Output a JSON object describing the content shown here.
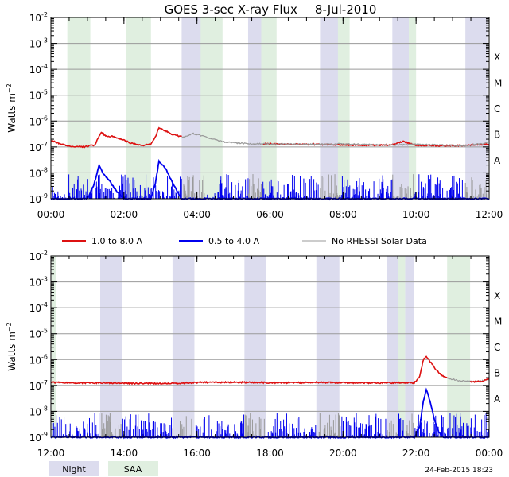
{
  "title": {
    "main": "GOES 3-sec X-ray Flux",
    "date": "8-Jul-2010"
  },
  "colors": {
    "long_channel": "#dd1111",
    "short_channel": "#0000ee",
    "no_rhessi": "#999999",
    "night": "#dcdcee",
    "saa": "#e0efe0",
    "grid": "#9a9a9a"
  },
  "ylabel": {
    "base": "Watts m",
    "exp": "−2"
  },
  "y_axis": {
    "scale": "log",
    "range": [
      1e-09,
      0.01
    ],
    "ticks": [
      {
        "value": -2,
        "base": "10",
        "exp": "-2"
      },
      {
        "value": -3,
        "base": "10",
        "exp": "-3"
      },
      {
        "value": -4,
        "base": "10",
        "exp": "-4"
      },
      {
        "value": -5,
        "base": "10",
        "exp": "-5"
      },
      {
        "value": -6,
        "base": "10",
        "exp": "-6"
      },
      {
        "value": -7,
        "base": "10",
        "exp": "-7"
      },
      {
        "value": -8,
        "base": "10",
        "exp": "-8"
      },
      {
        "value": -9,
        "base": "10",
        "exp": "-9"
      }
    ]
  },
  "flare_classes": [
    {
      "label": "X",
      "value": -3.5
    },
    {
      "label": "M",
      "value": -4.5
    },
    {
      "label": "C",
      "value": -5.5
    },
    {
      "label": "B",
      "value": -6.5
    },
    {
      "label": "A",
      "value": -7.5
    }
  ],
  "legend": {
    "long": "1.0 to 8.0 A",
    "short": "0.5 to 4.0 A",
    "none": "No RHESSI Solar Data"
  },
  "footer": {
    "night": "Night",
    "saa": "SAA",
    "created": "24-Feb-2015 18:23"
  },
  "chart_data": [
    {
      "type": "line",
      "x_range": [
        0,
        12
      ],
      "x_unit": "hours UT",
      "x_ticks": [
        "00:00",
        "02:00",
        "04:00",
        "06:00",
        "08:00",
        "10:00",
        "12:00"
      ],
      "y_unit": "log10 Watts m^-2",
      "night_intervals": [
        [
          3.58,
          4.2
        ],
        [
          5.4,
          5.8
        ],
        [
          7.37,
          7.9
        ],
        [
          9.35,
          9.95
        ],
        [
          11.35,
          11.95
        ]
      ],
      "saa_intervals": [
        [
          0.45,
          1.08
        ],
        [
          2.06,
          2.74
        ],
        [
          4.1,
          4.7
        ],
        [
          5.76,
          6.18
        ],
        [
          7.86,
          8.18
        ],
        [
          9.8,
          10.0
        ]
      ],
      "series": [
        {
          "name": "1.0 to 8.0 A",
          "color": "#dd1111",
          "points": [
            [
              0,
              -6.75
            ],
            [
              0.25,
              -6.88
            ],
            [
              0.5,
              -6.98
            ],
            [
              0.9,
              -7.0
            ],
            [
              1.2,
              -6.92
            ],
            [
              1.38,
              -6.42
            ],
            [
              1.5,
              -6.58
            ],
            [
              1.72,
              -6.6
            ],
            [
              1.9,
              -6.68
            ],
            [
              2.2,
              -6.85
            ],
            [
              2.5,
              -6.95
            ],
            [
              2.74,
              -6.9
            ],
            [
              2.86,
              -6.62
            ],
            [
              2.96,
              -6.25
            ],
            [
              3.06,
              -6.32
            ],
            [
              3.3,
              -6.5
            ],
            [
              3.58,
              -6.6
            ]
          ],
          "gaps": [
            [
              3.58,
              4.2
            ]
          ]
        },
        {
          "name": "1.0 to 8.0 A",
          "color": "#dd1111",
          "points": [
            [
              5.8,
              -6.88
            ],
            [
              6.5,
              -6.9
            ],
            [
              7.3,
              -6.9
            ],
            [
              7.9,
              -6.92
            ],
            [
              8.5,
              -6.93
            ],
            [
              9.3,
              -6.93
            ],
            [
              9.45,
              -6.88
            ],
            [
              9.65,
              -6.78
            ],
            [
              9.8,
              -6.85
            ],
            [
              10.0,
              -6.93
            ],
            [
              10.5,
              -6.95
            ],
            [
              11.3,
              -6.95
            ],
            [
              11.35,
              -6.93
            ],
            [
              12,
              -6.9
            ]
          ],
          "gaps": [
            [
              9.35,
              9.95
            ],
            [
              11.35,
              12
            ]
          ]
        },
        {
          "name": "No RHESSI Solar Data",
          "color": "#999999",
          "points": [
            [
              3.58,
              -6.65
            ],
            [
              3.9,
              -6.48
            ],
            [
              4.2,
              -6.6
            ],
            [
              4.7,
              -6.8
            ],
            [
              5.4,
              -6.88
            ],
            [
              5.8,
              -6.88
            ],
            [
              7.37,
              -6.9
            ],
            [
              7.9,
              -6.88
            ],
            [
              9.35,
              -6.93
            ],
            [
              9.95,
              -6.9
            ],
            [
              11.35,
              -6.95
            ],
            [
              11.95,
              -6.85
            ]
          ]
        },
        {
          "name": "0.5 to 4.0 A",
          "color": "#0000ee",
          "points": [
            [
              0,
              -9.0
            ],
            [
              1.0,
              -9.0
            ],
            [
              1.18,
              -8.45
            ],
            [
              1.32,
              -7.7
            ],
            [
              1.44,
              -8.05
            ],
            [
              1.6,
              -8.3
            ],
            [
              1.72,
              -8.55
            ],
            [
              1.85,
              -8.8
            ],
            [
              2.0,
              -9.0
            ],
            [
              2.74,
              -9.0
            ],
            [
              2.86,
              -8.4
            ],
            [
              2.96,
              -7.55
            ],
            [
              3.06,
              -7.7
            ],
            [
              3.15,
              -7.85
            ],
            [
              3.3,
              -8.3
            ],
            [
              3.45,
              -8.7
            ],
            [
              3.58,
              -9.0
            ],
            [
              12,
              -9.0
            ]
          ]
        }
      ]
    },
    {
      "type": "line",
      "x_range": [
        12,
        24
      ],
      "x_unit": "hours UT",
      "x_ticks": [
        "12:00",
        "14:00",
        "16:00",
        "18:00",
        "20:00",
        "22:00",
        "00:00"
      ],
      "y_unit": "log10 Watts m^-2",
      "night_intervals": [
        [
          13.35,
          13.95
        ],
        [
          15.33,
          15.93
        ],
        [
          17.3,
          17.9
        ],
        [
          19.27,
          19.9
        ],
        [
          21.2,
          21.5
        ],
        [
          21.7,
          21.95
        ]
      ],
      "saa_intervals": [
        [
          12.02,
          12.15
        ],
        [
          21.5,
          21.7
        ],
        [
          22.85,
          23.48
        ]
      ],
      "series": [
        {
          "name": "1.0 to 8.0 A",
          "color": "#dd1111",
          "points": [
            [
              12,
              -6.88
            ],
            [
              12.5,
              -6.9
            ],
            [
              13.35,
              -6.9
            ],
            [
              14.3,
              -6.92
            ],
            [
              15.33,
              -6.92
            ],
            [
              16.3,
              -6.88
            ],
            [
              17.3,
              -6.88
            ],
            [
              18.3,
              -6.9
            ],
            [
              19.27,
              -6.88
            ],
            [
              20.3,
              -6.9
            ],
            [
              21.2,
              -6.9
            ],
            [
              21.95,
              -6.9
            ],
            [
              22.1,
              -6.65
            ],
            [
              22.2,
              -6.0
            ],
            [
              22.28,
              -5.88
            ],
            [
              22.4,
              -6.1
            ],
            [
              22.55,
              -6.4
            ],
            [
              22.7,
              -6.6
            ],
            [
              22.85,
              -6.7
            ]
          ],
          "gaps": [
            [
              13.35,
              13.95
            ],
            [
              15.33,
              15.93
            ],
            [
              17.3,
              17.9
            ],
            [
              19.27,
              19.9
            ],
            [
              21.2,
              21.95
            ]
          ]
        },
        {
          "name": "No RHESSI Solar Data",
          "color": "#999999",
          "points": [
            [
              22.85,
              -6.72
            ],
            [
              23.2,
              -6.82
            ],
            [
              23.48,
              -6.85
            ],
            [
              23.7,
              -6.85
            ],
            [
              24,
              -6.78
            ]
          ]
        },
        {
          "name": "1.0 to 8.0 A",
          "color": "#dd1111",
          "points": [
            [
              23.48,
              -6.85
            ],
            [
              23.8,
              -6.85
            ],
            [
              24,
              -6.75
            ]
          ]
        },
        {
          "name": "0.5 to 4.0 A",
          "color": "#0000ee",
          "points": [
            [
              12,
              -9.0
            ],
            [
              21.95,
              -9.0
            ],
            [
              22.1,
              -8.6
            ],
            [
              22.2,
              -7.6
            ],
            [
              22.28,
              -7.15
            ],
            [
              22.38,
              -7.6
            ],
            [
              22.5,
              -8.3
            ],
            [
              22.62,
              -8.8
            ],
            [
              22.75,
              -9.0
            ],
            [
              24,
              -9.0
            ]
          ]
        }
      ]
    }
  ]
}
